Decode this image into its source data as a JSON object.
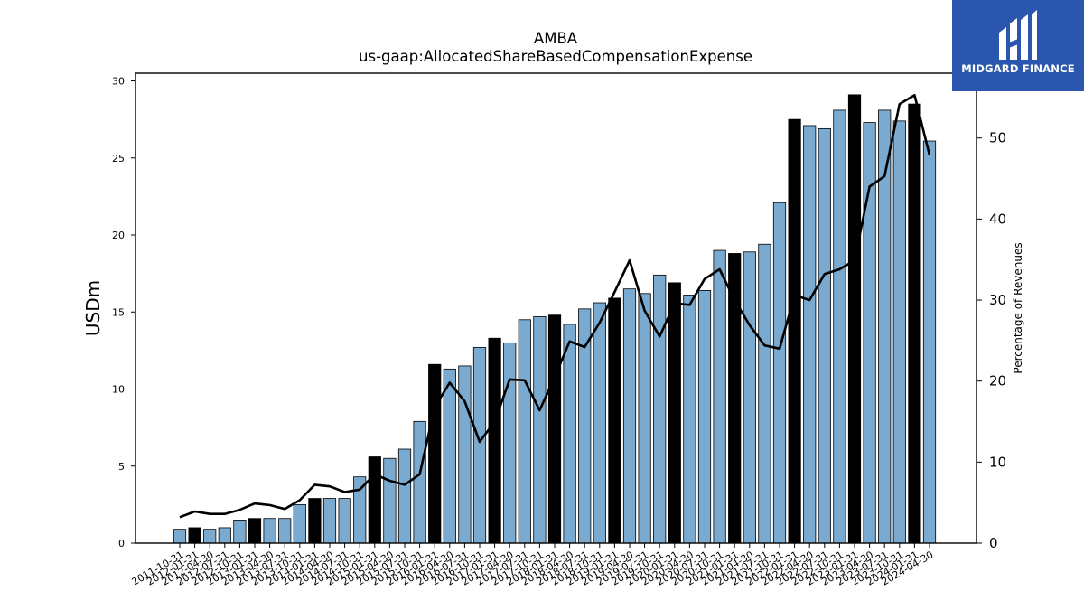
{
  "brand": {
    "name": "MIDGARD FINANCE",
    "box_color": "#2a57ad"
  },
  "chart_data": {
    "type": "bar",
    "title": "AMBA",
    "subtitle": "us-gaap:AllocatedShareBasedCompensationExpense",
    "ylabel": "USDm",
    "y2label": "Percentage of Revenues",
    "ylim": [
      0,
      30.5
    ],
    "y2lim": [
      0,
      58
    ],
    "yticks": [
      0,
      5,
      10,
      15,
      20,
      25,
      30
    ],
    "y2ticks": [
      0,
      10,
      20,
      30,
      40,
      50
    ],
    "grid": false,
    "colors": {
      "bar": "#7aaad0",
      "bar_highlight": "#000000",
      "line": "#000000"
    },
    "categories": [
      "2011-10-31",
      "2012-01-31",
      "2012-04-30",
      "2012-07-31",
      "2012-10-31",
      "2013-01-31",
      "2013-04-30",
      "2013-07-31",
      "2013-10-31",
      "2014-01-31",
      "2014-04-30",
      "2014-07-31",
      "2014-10-31",
      "2015-01-31",
      "2015-04-30",
      "2015-07-31",
      "2015-10-31",
      "2016-01-31",
      "2016-04-30",
      "2016-07-31",
      "2016-10-31",
      "2017-01-31",
      "2017-04-30",
      "2017-07-31",
      "2017-10-31",
      "2018-01-31",
      "2018-04-30",
      "2018-07-31",
      "2018-10-31",
      "2019-01-31",
      "2019-04-30",
      "2019-07-31",
      "2019-10-31",
      "2020-01-31",
      "2020-04-30",
      "2020-07-31",
      "2020-10-31",
      "2021-01-31",
      "2021-04-30",
      "2021-07-31",
      "2021-10-31",
      "2022-01-31",
      "2022-04-30",
      "2022-07-31",
      "2022-10-31",
      "2023-01-31",
      "2023-04-30",
      "2023-07-31",
      "2023-10-31",
      "2024-01-31",
      "2024-04-30"
    ],
    "series": [
      {
        "type": "bar",
        "axis": "left",
        "values": [
          0.9,
          1.0,
          0.9,
          1.0,
          1.5,
          1.6,
          1.6,
          1.6,
          2.5,
          2.9,
          2.9,
          2.9,
          4.3,
          5.6,
          5.5,
          6.1,
          7.9,
          11.6,
          11.3,
          11.5,
          12.7,
          13.3,
          13.0,
          14.5,
          14.7,
          14.8,
          14.2,
          15.2,
          15.6,
          15.9,
          16.5,
          16.2,
          17.4,
          16.9,
          16.1,
          16.4,
          19.0,
          18.8,
          18.9,
          19.4,
          22.1,
          27.5,
          27.1,
          26.9,
          28.1,
          29.1,
          27.3,
          28.1,
          27.4,
          28.5,
          26.1
        ],
        "highlight": [
          false,
          true,
          false,
          false,
          false,
          true,
          false,
          false,
          false,
          true,
          false,
          false,
          false,
          true,
          false,
          false,
          false,
          true,
          false,
          false,
          false,
          true,
          false,
          false,
          false,
          true,
          false,
          false,
          false,
          true,
          false,
          false,
          false,
          true,
          false,
          false,
          false,
          true,
          false,
          false,
          false,
          true,
          false,
          false,
          false,
          true,
          false,
          false,
          false,
          true,
          false
        ]
      },
      {
        "type": "line",
        "axis": "right",
        "values": [
          3.2,
          3.9,
          3.6,
          3.6,
          4.1,
          4.9,
          4.7,
          4.2,
          5.3,
          7.2,
          7.0,
          6.3,
          6.6,
          8.5,
          7.7,
          7.2,
          8.5,
          16.8,
          19.8,
          17.5,
          12.5,
          15.0,
          20.2,
          20.1,
          16.4,
          20.5,
          24.9,
          24.2,
          27.2,
          31.0,
          34.9,
          28.7,
          25.5,
          29.6,
          29.4,
          32.6,
          33.8,
          30.0,
          26.9,
          24.4,
          24.0,
          30.6,
          30.0,
          33.2,
          33.8,
          34.9,
          44.0,
          45.3,
          54.2,
          55.3,
          47.9
        ]
      }
    ]
  }
}
